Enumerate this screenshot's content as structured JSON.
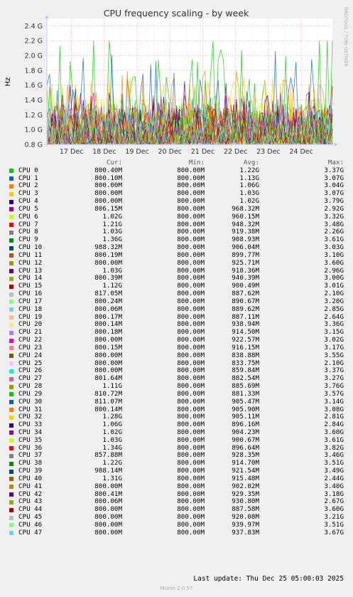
{
  "chart_data": {
    "type": "line",
    "title": "CPU frequency scaling - by week",
    "ylabel": "Hz",
    "side_label": "RRDTOOL / TOBI OETIKER",
    "ylim": [
      800000000,
      2500000000
    ],
    "ytick_labels": [
      "0.8 G",
      "1.0 G",
      "1.2 G",
      "1.4 G",
      "1.6 G",
      "1.8 G",
      "2.0 G",
      "2.2 G",
      "2.4 G"
    ],
    "yticks": [
      800000000,
      1000000000,
      1200000000,
      1400000000,
      1600000000,
      1800000000,
      2000000000,
      2200000000,
      2400000000
    ],
    "xtick_labels": [
      "17 Dec",
      "18 Dec",
      "19 Dec",
      "20 Dec",
      "21 Dec",
      "22 Dec",
      "23 Dec",
      "24 Dec"
    ],
    "grid": true,
    "legend_header": {
      "cur": "Cur:",
      "min": "Min:",
      "avg": "Avg:",
      "max": "Max:"
    },
    "series": [
      {
        "name": "CPU 0",
        "color": "#00cc00",
        "cur": "800.40M",
        "min": "800.00M",
        "avg": "1.22G",
        "max": "3.37G"
      },
      {
        "name": "CPU 1",
        "color": "#0066b3",
        "cur": "800.10M",
        "min": "800.00M",
        "avg": "1.13G",
        "max": "3.07G"
      },
      {
        "name": "CPU 2",
        "color": "#ff8000",
        "cur": "800.00M",
        "min": "800.00M",
        "avg": "1.06G",
        "max": "3.04G"
      },
      {
        "name": "CPU 3",
        "color": "#ffcc00",
        "cur": "800.00M",
        "min": "800.00M",
        "avg": "1.03G",
        "max": "3.07G"
      },
      {
        "name": "CPU 4",
        "color": "#330099",
        "cur": "800.00M",
        "min": "800.00M",
        "avg": "1.02G",
        "max": "3.79G"
      },
      {
        "name": "CPU 5",
        "color": "#990099",
        "cur": "806.15M",
        "min": "800.00M",
        "avg": "968.32M",
        "max": "2.92G"
      },
      {
        "name": "CPU 6",
        "color": "#ccff00",
        "cur": "1.02G",
        "min": "800.00M",
        "avg": "960.15M",
        "max": "3.32G"
      },
      {
        "name": "CPU 7",
        "color": "#ff0000",
        "cur": "1.21G",
        "min": "800.00M",
        "avg": "948.32M",
        "max": "3.48G"
      },
      {
        "name": "CPU 8",
        "color": "#808080",
        "cur": "1.03G",
        "min": "800.00M",
        "avg": "919.38M",
        "max": "2.26G"
      },
      {
        "name": "CPU 9",
        "color": "#008f00",
        "cur": "1.36G",
        "min": "800.00M",
        "avg": "908.93M",
        "max": "3.61G"
      },
      {
        "name": "CPU 10",
        "color": "#00487d",
        "cur": "988.32M",
        "min": "800.00M",
        "avg": "906.04M",
        "max": "3.03G"
      },
      {
        "name": "CPU 11",
        "color": "#b35a00",
        "cur": "800.19M",
        "min": "800.00M",
        "avg": "899.77M",
        "max": "3.10G"
      },
      {
        "name": "CPU 12",
        "color": "#b38f00",
        "cur": "800.00M",
        "min": "800.00M",
        "avg": "925.71M",
        "max": "3.60G"
      },
      {
        "name": "CPU 13",
        "color": "#6b006b",
        "cur": "1.03G",
        "min": "800.00M",
        "avg": "918.36M",
        "max": "2.96G"
      },
      {
        "name": "CPU 14",
        "color": "#8fb300",
        "cur": "800.39M",
        "min": "800.00M",
        "avg": "940.39M",
        "max": "3.00G"
      },
      {
        "name": "CPU 15",
        "color": "#b30000",
        "cur": "1.12G",
        "min": "800.00M",
        "avg": "900.49M",
        "max": "3.01G"
      },
      {
        "name": "CPU 16",
        "color": "#bebebe",
        "cur": "817.05M",
        "min": "800.00M",
        "avg": "887.62M",
        "max": "2.10G"
      },
      {
        "name": "CPU 17",
        "color": "#80ff80",
        "cur": "800.24M",
        "min": "800.00M",
        "avg": "890.67M",
        "max": "3.20G"
      },
      {
        "name": "CPU 18",
        "color": "#80c9ff",
        "cur": "800.06M",
        "min": "800.00M",
        "avg": "889.62M",
        "max": "2.85G"
      },
      {
        "name": "CPU 19",
        "color": "#ffc080",
        "cur": "800.17M",
        "min": "800.00M",
        "avg": "887.11M",
        "max": "2.64G"
      },
      {
        "name": "CPU 20",
        "color": "#ffe680",
        "cur": "800.14M",
        "min": "800.00M",
        "avg": "938.94M",
        "max": "3.36G"
      },
      {
        "name": "CPU 21",
        "color": "#aa80ff",
        "cur": "800.18M",
        "min": "800.00M",
        "avg": "914.50M",
        "max": "3.15G"
      },
      {
        "name": "CPU 22",
        "color": "#ee00cc",
        "cur": "800.00M",
        "min": "800.00M",
        "avg": "922.57M",
        "max": "3.02G"
      },
      {
        "name": "CPU 23",
        "color": "#ff8080",
        "cur": "800.15M",
        "min": "800.00M",
        "avg": "916.15M",
        "max": "3.17G"
      },
      {
        "name": "CPU 24",
        "color": "#666600",
        "cur": "800.00M",
        "min": "800.00M",
        "avg": "838.88M",
        "max": "3.55G"
      },
      {
        "name": "CPU 25",
        "color": "#ffbfff",
        "cur": "800.00M",
        "min": "800.00M",
        "avg": "833.75M",
        "max": "2.10G"
      },
      {
        "name": "CPU 26",
        "color": "#00ffcc",
        "cur": "800.00M",
        "min": "800.00M",
        "avg": "859.84M",
        "max": "3.37G"
      },
      {
        "name": "CPU 27",
        "color": "#cc6699",
        "cur": "801.64M",
        "min": "800.00M",
        "avg": "882.54M",
        "max": "3.27G"
      },
      {
        "name": "CPU 28",
        "color": "#999900",
        "cur": "1.11G",
        "min": "800.00M",
        "avg": "885.69M",
        "max": "3.76G"
      },
      {
        "name": "CPU 29",
        "color": "#00cc00",
        "cur": "810.72M",
        "min": "800.00M",
        "avg": "881.33M",
        "max": "3.57G"
      },
      {
        "name": "CPU 30",
        "color": "#0066b3",
        "cur": "811.07M",
        "min": "800.00M",
        "avg": "905.47M",
        "max": "3.14G"
      },
      {
        "name": "CPU 31",
        "color": "#ff8000",
        "cur": "800.14M",
        "min": "800.00M",
        "avg": "905.90M",
        "max": "3.08G"
      },
      {
        "name": "CPU 32",
        "color": "#ffcc00",
        "cur": "1.28G",
        "min": "800.00M",
        "avg": "905.11M",
        "max": "2.81G"
      },
      {
        "name": "CPU 33",
        "color": "#330099",
        "cur": "1.06G",
        "min": "800.00M",
        "avg": "896.16M",
        "max": "2.84G"
      },
      {
        "name": "CPU 34",
        "color": "#990099",
        "cur": "1.02G",
        "min": "800.00M",
        "avg": "904.23M",
        "max": "3.60G"
      },
      {
        "name": "CPU 35",
        "color": "#ccff00",
        "cur": "1.03G",
        "min": "800.00M",
        "avg": "900.67M",
        "max": "3.61G"
      },
      {
        "name": "CPU 36",
        "color": "#ff0000",
        "cur": "1.34G",
        "min": "800.00M",
        "avg": "896.64M",
        "max": "3.82G"
      },
      {
        "name": "CPU 37",
        "color": "#808080",
        "cur": "857.88M",
        "min": "800.00M",
        "avg": "928.35M",
        "max": "3.46G"
      },
      {
        "name": "CPU 38",
        "color": "#008f00",
        "cur": "1.22G",
        "min": "800.00M",
        "avg": "914.70M",
        "max": "3.51G"
      },
      {
        "name": "CPU 39",
        "color": "#00487d",
        "cur": "988.14M",
        "min": "800.00M",
        "avg": "921.54M",
        "max": "3.49G"
      },
      {
        "name": "CPU 40",
        "color": "#b35a00",
        "cur": "1.31G",
        "min": "800.00M",
        "avg": "915.48M",
        "max": "2.44G"
      },
      {
        "name": "CPU 41",
        "color": "#b38f00",
        "cur": "800.00M",
        "min": "800.00M",
        "avg": "902.02M",
        "max": "3.40G"
      },
      {
        "name": "CPU 42",
        "color": "#6b006b",
        "cur": "800.41M",
        "min": "800.00M",
        "avg": "929.35M",
        "max": "3.18G"
      },
      {
        "name": "CPU 43",
        "color": "#8fb300",
        "cur": "800.06M",
        "min": "800.00M",
        "avg": "930.80M",
        "max": "2.67G"
      },
      {
        "name": "CPU 44",
        "color": "#b30000",
        "cur": "800.00M",
        "min": "800.00M",
        "avg": "887.58M",
        "max": "3.60G"
      },
      {
        "name": "CPU 45",
        "color": "#bebebe",
        "cur": "800.00M",
        "min": "800.00M",
        "avg": "920.08M",
        "max": "3.21G"
      },
      {
        "name": "CPU 46",
        "color": "#80ff80",
        "cur": "800.00M",
        "min": "800.00M",
        "avg": "939.97M",
        "max": "3.51G"
      },
      {
        "name": "CPU 47",
        "color": "#80c9ff",
        "cur": "800.00M",
        "min": "800.00M",
        "avg": "937.83M",
        "max": "3.67G"
      }
    ]
  },
  "footer": {
    "last_update": "Last update: Thu Dec 25 05:00:03 2025",
    "generator": "Munin 2.0.57"
  }
}
